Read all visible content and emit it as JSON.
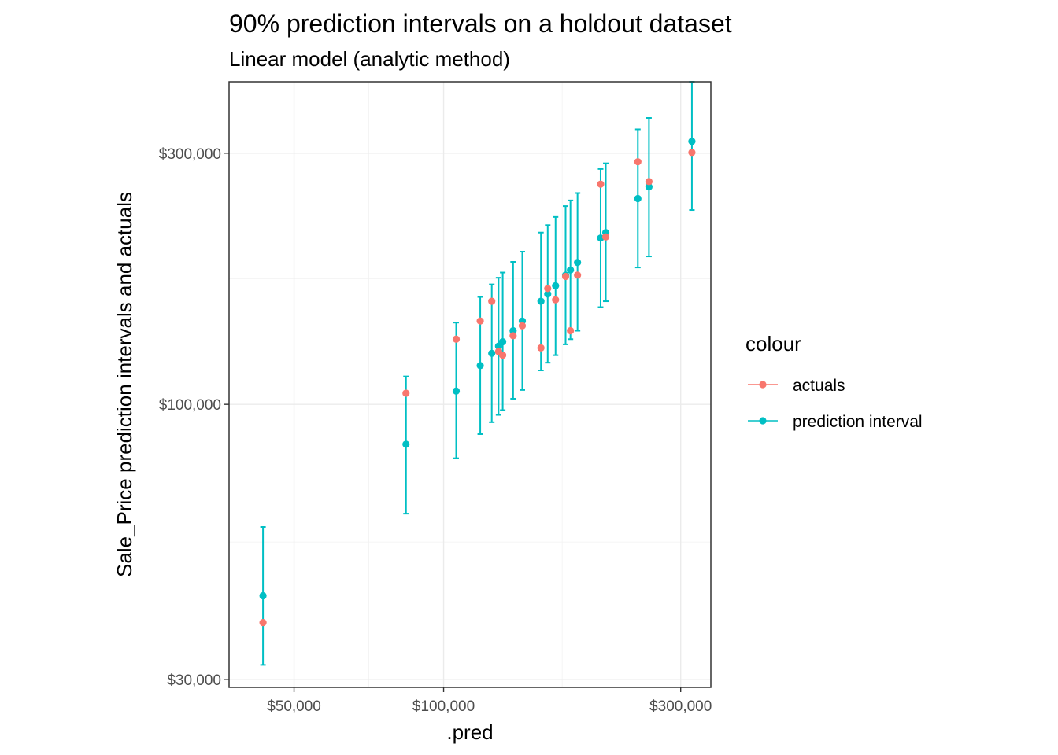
{
  "chart_data": {
    "type": "scatter",
    "title": "90% prediction intervals on a holdout dataset",
    "subtitle": "Linear model (analytic method)",
    "xlabel": ".pred",
    "ylabel": "Sale_Price prediction intervals and actuals",
    "x_scale": "log10",
    "y_scale": "log10",
    "xlim": [
      37000,
      345000
    ],
    "ylim": [
      29000,
      410000
    ],
    "x_ticks": [
      {
        "value": 50000,
        "label": "$50,000"
      },
      {
        "value": 100000,
        "label": "$100,000"
      },
      {
        "value": 300000,
        "label": "$300,000"
      }
    ],
    "y_ticks": [
      {
        "value": 30000,
        "label": "$30,000"
      },
      {
        "value": 100000,
        "label": "$100,000"
      },
      {
        "value": 300000,
        "label": "$300,000"
      }
    ],
    "grid": true,
    "legend": {
      "title": "colour",
      "position": "right",
      "entries": [
        {
          "label": "actuals",
          "color": "#F8766D"
        },
        {
          "label": "prediction interval",
          "color": "#00BFC4"
        }
      ]
    },
    "colors": {
      "actuals": "#F8766D",
      "prediction_interval": "#00BFC4"
    },
    "points": [
      {
        "pred": 43300,
        "lower": 32000,
        "upper": 58500,
        "actual": 38500
      },
      {
        "pred": 84000,
        "lower": 62000,
        "upper": 113000,
        "actual": 105000
      },
      {
        "pred": 106000,
        "lower": 79000,
        "upper": 143000,
        "actual": 133000
      },
      {
        "pred": 118500,
        "lower": 87800,
        "upper": 160000,
        "actual": 144000
      },
      {
        "pred": 125000,
        "lower": 92500,
        "upper": 169000,
        "actual": 157000
      },
      {
        "pred": 129000,
        "lower": 95500,
        "upper": 174000,
        "actual": 126000
      },
      {
        "pred": 131500,
        "lower": 97500,
        "upper": 178000,
        "actual": 124000
      },
      {
        "pred": 138000,
        "lower": 102500,
        "upper": 186500,
        "actual": 135000
      },
      {
        "pred": 144000,
        "lower": 106500,
        "upper": 195000,
        "actual": 141000
      },
      {
        "pred": 157000,
        "lower": 116000,
        "upper": 212000,
        "actual": 128000
      },
      {
        "pred": 162000,
        "lower": 120000,
        "upper": 219000,
        "actual": 166000
      },
      {
        "pred": 168000,
        "lower": 124000,
        "upper": 227000,
        "actual": 158000
      },
      {
        "pred": 176000,
        "lower": 130000,
        "upper": 238000,
        "actual": 175000
      },
      {
        "pred": 180000,
        "lower": 133000,
        "upper": 244000,
        "actual": 138000
      },
      {
        "pred": 186000,
        "lower": 138000,
        "upper": 252000,
        "actual": 176000
      },
      {
        "pred": 207000,
        "lower": 153000,
        "upper": 280000,
        "actual": 262000
      },
      {
        "pred": 212000,
        "lower": 157000,
        "upper": 287000,
        "actual": 208000
      },
      {
        "pred": 246000,
        "lower": 182000,
        "upper": 333000,
        "actual": 289000
      },
      {
        "pred": 259000,
        "lower": 191000,
        "upper": 350000,
        "actual": 265000
      },
      {
        "pred": 316000,
        "lower": 234000,
        "upper": 427000,
        "actual": 301000
      }
    ]
  }
}
